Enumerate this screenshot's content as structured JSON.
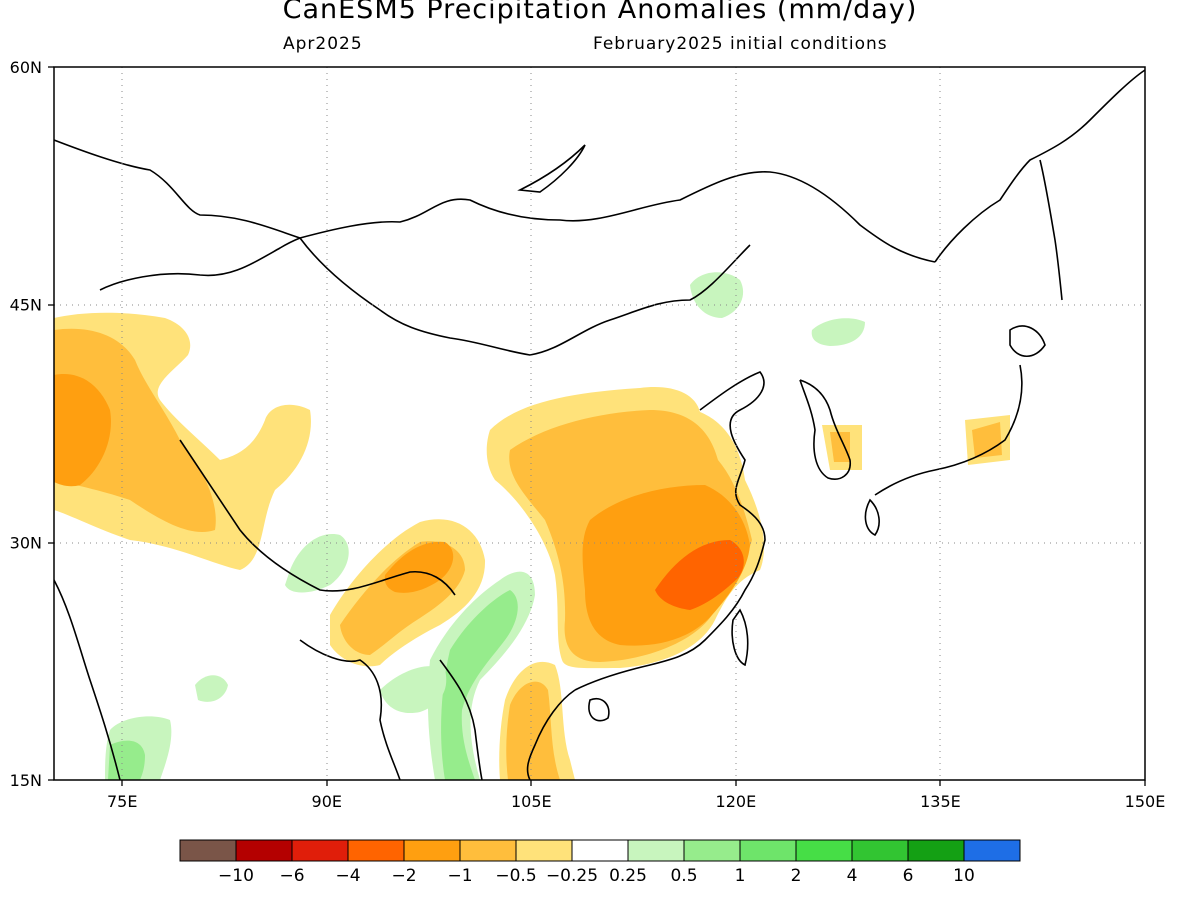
{
  "title": "CanESM5 Precipitation Anomalies (mm/day)",
  "subtitle_left": "Apr2025",
  "subtitle_right": "February2025 initial conditions",
  "map": {
    "lon_range": [
      70,
      150
    ],
    "lat_range": [
      15,
      60
    ],
    "lon_ticks": [
      {
        "value": 75,
        "label": "75E"
      },
      {
        "value": 90,
        "label": "90E"
      },
      {
        "value": 105,
        "label": "105E"
      },
      {
        "value": 120,
        "label": "120E"
      },
      {
        "value": 135,
        "label": "135E"
      },
      {
        "value": 150,
        "label": "150E"
      }
    ],
    "lat_ticks": [
      {
        "value": 60,
        "label": "60N"
      },
      {
        "value": 45,
        "label": "45N"
      },
      {
        "value": 30,
        "label": "30N"
      },
      {
        "value": 15,
        "label": "15N"
      }
    ],
    "grid": "dotted"
  },
  "colorbar": {
    "colors": [
      "#7a5548",
      "#b40000",
      "#e01e0a",
      "#ff6400",
      "#ff9f10",
      "#ffbe3c",
      "#ffe27a",
      "#ffffff",
      "#c8f5be",
      "#96ec8c",
      "#6ee46a",
      "#46de46",
      "#32c532",
      "#14a014",
      "#1e6ee6"
    ],
    "labels": [
      "-10",
      "-6",
      "-4",
      "-2",
      "-1",
      "-0.5",
      "-0.25",
      "0.25",
      "0.5",
      "1",
      "2",
      "4",
      "6",
      "10"
    ]
  }
}
